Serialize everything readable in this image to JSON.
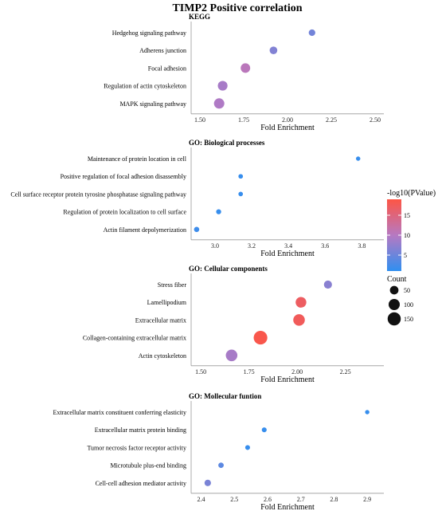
{
  "title": "TIMP2 Positive correlation",
  "chart_data": [
    {
      "type": "scatter",
      "panel": "KEGG",
      "xlabel": "Fold Enrichment",
      "xlim": [
        1.45,
        2.55
      ],
      "xticks": [
        1.5,
        1.75,
        2.0,
        2.25,
        2.5
      ],
      "xtick_labels": [
        "1.50",
        "1.75",
        "2.00",
        "2.25",
        "2.50"
      ],
      "categories": [
        "Hedgehog signaling pathway",
        "Adherens junction",
        "Focal adhesion",
        "Regulation of actin cytoskeleton",
        "MAPK signaling pathway"
      ],
      "fold_enrichment": [
        2.14,
        1.92,
        1.76,
        1.63,
        1.61
      ],
      "neg_log10_pvalue": [
        5.5,
        6.5,
        10.5,
        9.0,
        9.5
      ],
      "count": [
        23,
        36,
        66,
        69,
        83
      ]
    },
    {
      "type": "scatter",
      "panel": "GO: Biological processes",
      "xlabel": "Fold Enrichment",
      "xlim": [
        2.87,
        3.92
      ],
      "xticks": [
        3.0,
        3.2,
        3.4,
        3.6,
        3.8
      ],
      "xtick_labels": [
        "3.0",
        "3.2",
        "3.4",
        "3.6",
        "3.8"
      ],
      "categories": [
        "Maintenance of protein location in cell",
        "Positive regulation of focal adhesion disassembly",
        "Cell surface receptor protein tyrosine phosphatase signaling pathway",
        "Regulation of protein localization to cell surface",
        "Actin filament depolymerization"
      ],
      "fold_enrichment": [
        3.78,
        3.14,
        3.14,
        3.02,
        2.9
      ],
      "neg_log10_pvalue": [
        1.5,
        1.5,
        1.5,
        1.5,
        2.0
      ],
      "count": [
        5,
        6,
        6,
        9,
        11
      ]
    },
    {
      "type": "scatter",
      "panel": "GO: Cellular components",
      "xlabel": "Fold Enrichment",
      "xlim": [
        1.45,
        2.45
      ],
      "xticks": [
        1.5,
        1.75,
        2.0,
        2.25
      ],
      "xtick_labels": [
        "1.50",
        "1.75",
        "2.00",
        "2.25"
      ],
      "categories": [
        "Stress fiber",
        "Lamellipodium",
        "Extracellular matrix",
        "Collagen-containing extracellular matrix",
        "Actin cytoskeleton"
      ],
      "fold_enrichment": [
        2.16,
        2.02,
        2.01,
        1.81,
        1.66
      ],
      "neg_log10_pvalue": [
        7.0,
        17.0,
        17.5,
        18.5,
        9.0
      ],
      "count": [
        42,
        90,
        110,
        165,
        110
      ]
    },
    {
      "type": "scatter",
      "panel": "GO: Mollecular funtion",
      "xlabel": "Fold Enrichment",
      "xlim": [
        2.37,
        2.95
      ],
      "xticks": [
        2.4,
        2.5,
        2.6,
        2.7,
        2.8,
        2.9
      ],
      "xtick_labels": [
        "2.4",
        "2.5",
        "2.6",
        "2.7",
        "2.8",
        "2.9"
      ],
      "categories": [
        "Extracellular matrix constituent conferring elasticity",
        "Extracellular matrix protein binding",
        "Tumor necrosis factor receptor activity",
        "Microtubule plus-end binding",
        "Cell-cell adhesion mediator activity"
      ],
      "fold_enrichment": [
        2.9,
        2.59,
        2.54,
        2.46,
        2.42
      ],
      "neg_log10_pvalue": [
        1.5,
        1.5,
        1.5,
        4.0,
        6.0
      ],
      "count": [
        5,
        8,
        8,
        12,
        22
      ]
    }
  ],
  "legend": {
    "color_title": "-log10(PValue)",
    "color_ticks": [
      "5",
      "10",
      "15"
    ],
    "color_tick_values": [
      5,
      10,
      15
    ],
    "color_range": [
      1,
      19
    ],
    "color_low": "#2f8ff0",
    "color_mid": "#b679c2",
    "color_high": "#fd5545",
    "size_title": "Count",
    "size_labels": [
      "50",
      "100",
      "150"
    ],
    "size_values": [
      50,
      100,
      150
    ]
  }
}
